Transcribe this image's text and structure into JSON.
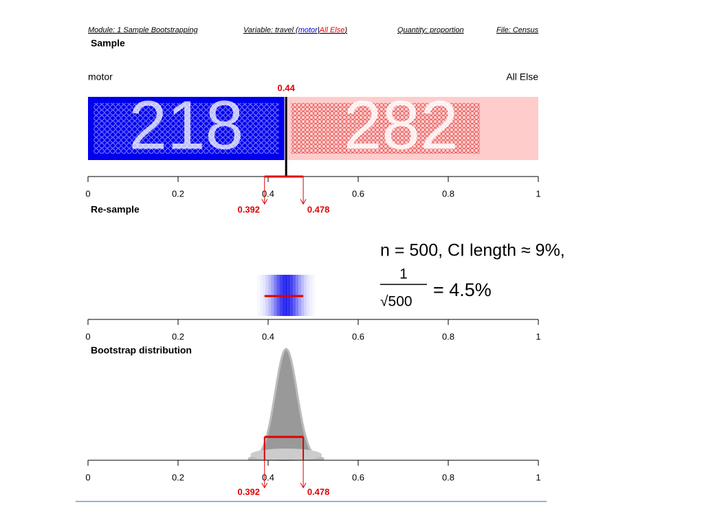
{
  "header": {
    "module": "Module: 1 Sample Bootstrapping",
    "variable_prefix": "Variable: travel (",
    "level_1": "motor",
    "separator": "|",
    "level_2": "All Else",
    "variable_suffix": ")",
    "quantity": "Quantity: proportion",
    "file": "File: Census"
  },
  "axis": {
    "xlim": [
      0,
      1
    ],
    "xticks": [
      0,
      0.2,
      0.4,
      0.6,
      0.8,
      1
    ]
  },
  "sample": {
    "title": "Sample",
    "left_label": "motor",
    "right_label": "All Else",
    "counts": [
      218,
      282
    ],
    "colors": [
      "#0000ee",
      "#ffcccc"
    ],
    "proportion": 0.44,
    "ci": [
      0.392,
      0.478
    ]
  },
  "resample": {
    "title": "Re-sample"
  },
  "bootstrap": {
    "title": "Bootstrap distribution",
    "ci": [
      0.392,
      0.478
    ]
  },
  "annotation": {
    "line_1": "n = 500, CI length ≈ 9%,",
    "numerator": "1",
    "denominator": "√500",
    "result": "= 4.5%"
  }
}
